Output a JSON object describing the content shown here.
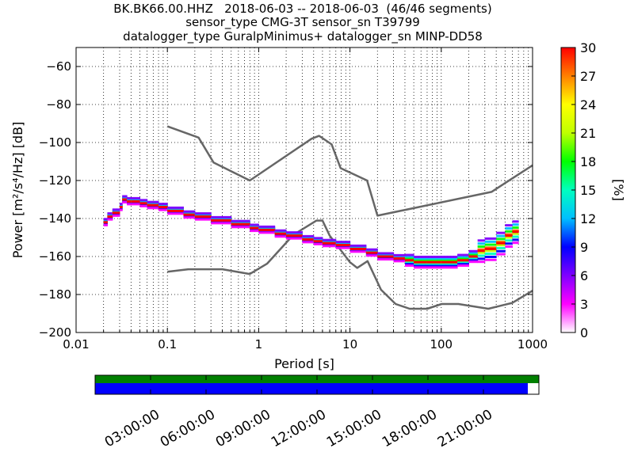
{
  "header": {
    "line1": "BK.BK66.00.HHZ   2018-06-03 -- 2018-06-03  (46/46 segments)",
    "line2": "sensor_type CMG-3T sensor_sn T39799",
    "line3": "datalogger_type GuralpMinimus+ datalogger_sn MINP-DD58"
  },
  "colors": {
    "noise_model": "#666666",
    "availability_bar_top": "#008000",
    "availability_bar_bottom": "#0000ff"
  },
  "chart_data": [
    {
      "type": "heatmap",
      "xlabel": "Period [s]",
      "ylabel": "Power [m²/s⁴/Hz] [dB]",
      "x_scale": "log",
      "xlim": [
        0.01,
        1000
      ],
      "ylim": [
        -200,
        -50
      ],
      "x_ticks": [
        0.01,
        0.1,
        1,
        10,
        100,
        1000
      ],
      "x_tick_labels": [
        "0.01",
        "0.1",
        "1",
        "10",
        "100",
        "1000"
      ],
      "y_ticks": [
        -200,
        -180,
        -160,
        -140,
        -120,
        -100,
        -80,
        -60
      ],
      "y_tick_labels": [
        "−200",
        "−180",
        "−160",
        "−140",
        "−120",
        "−100",
        "−80",
        "−60"
      ],
      "grid": "dotted",
      "colorbar": {
        "label": "[%]",
        "range": [
          0,
          30
        ],
        "ticks": [
          "0",
          "3",
          "6",
          "9",
          "12",
          "15",
          "18",
          "21",
          "24",
          "27",
          "30"
        ],
        "colormap": [
          "#ffffff",
          "#ff00ff",
          "#7f00ff",
          "#0000ff",
          "#00bfff",
          "#00ffbf",
          "#00ff00",
          "#bfff00",
          "#ffff00",
          "#ff8000",
          "#ff0000"
        ]
      },
      "psd_trace": [
        [
          0.02,
          -142
        ],
        [
          0.022,
          -139
        ],
        [
          0.025,
          -137
        ],
        [
          0.028,
          -137
        ],
        [
          0.03,
          -134
        ],
        [
          0.032,
          -130
        ],
        [
          0.036,
          -131
        ],
        [
          0.04,
          -131
        ],
        [
          0.05,
          -132
        ],
        [
          0.06,
          -133
        ],
        [
          0.08,
          -134
        ],
        [
          0.1,
          -136
        ],
        [
          0.15,
          -138
        ],
        [
          0.2,
          -139
        ],
        [
          0.3,
          -141
        ],
        [
          0.5,
          -143
        ],
        [
          0.8,
          -145
        ],
        [
          1,
          -146
        ],
        [
          1.5,
          -148
        ],
        [
          2,
          -149
        ],
        [
          3,
          -151
        ],
        [
          4,
          -152
        ],
        [
          5,
          -153
        ],
        [
          7,
          -154
        ],
        [
          10,
          -156
        ],
        [
          15,
          -158
        ],
        [
          20,
          -160
        ],
        [
          30,
          -161
        ],
        [
          40,
          -162
        ],
        [
          50,
          -163
        ],
        [
          70,
          -163
        ],
        [
          100,
          -163
        ],
        [
          150,
          -162
        ],
        [
          200,
          -160
        ],
        [
          250,
          -157
        ],
        [
          300,
          -156
        ],
        [
          400,
          -153
        ],
        [
          500,
          -149
        ],
        [
          600,
          -147
        ],
        [
          700,
          -147
        ]
      ],
      "high_noise_model": [
        [
          0.1,
          -91.5
        ],
        [
          0.22,
          -97.4
        ],
        [
          0.32,
          -110.5
        ],
        [
          0.8,
          -120
        ],
        [
          3.8,
          -98
        ],
        [
          4.6,
          -96.5
        ],
        [
          6.3,
          -101
        ],
        [
          7.9,
          -113.5
        ],
        [
          15.4,
          -120
        ],
        [
          20,
          -138.5
        ],
        [
          354.8,
          -126
        ],
        [
          1000,
          -112
        ]
      ],
      "low_noise_model": [
        [
          0.1,
          -168
        ],
        [
          0.17,
          -166.7
        ],
        [
          0.4,
          -166.7
        ],
        [
          0.8,
          -169.2
        ],
        [
          1.24,
          -163.7
        ],
        [
          2.4,
          -148.6
        ],
        [
          4.3,
          -141.1
        ],
        [
          5,
          -141.1
        ],
        [
          6,
          -149
        ],
        [
          10,
          -163
        ],
        [
          12,
          -166
        ],
        [
          15.6,
          -162.4
        ],
        [
          21.9,
          -177.5
        ],
        [
          31.6,
          -185
        ],
        [
          45,
          -187.5
        ],
        [
          70,
          -187.5
        ],
        [
          101,
          -185
        ],
        [
          154,
          -185
        ],
        [
          328,
          -187.5
        ],
        [
          600,
          -184.4
        ],
        [
          1000,
          -178
        ]
      ]
    },
    {
      "type": "timeline",
      "x_tick_labels": [
        "03:00:00",
        "06:00:00",
        "09:00:00",
        "12:00:00",
        "15:00:00",
        "18:00:00",
        "21:00:00"
      ],
      "x_tick_hours": [
        3,
        6,
        9,
        12,
        15,
        18,
        21
      ],
      "span_hours": 24,
      "rows": [
        {
          "name": "",
          "color": "#008000",
          "covered_fraction": 1.0
        },
        {
          "name": "",
          "color": "#0000ff",
          "covered_fraction": 0.975
        }
      ]
    }
  ]
}
